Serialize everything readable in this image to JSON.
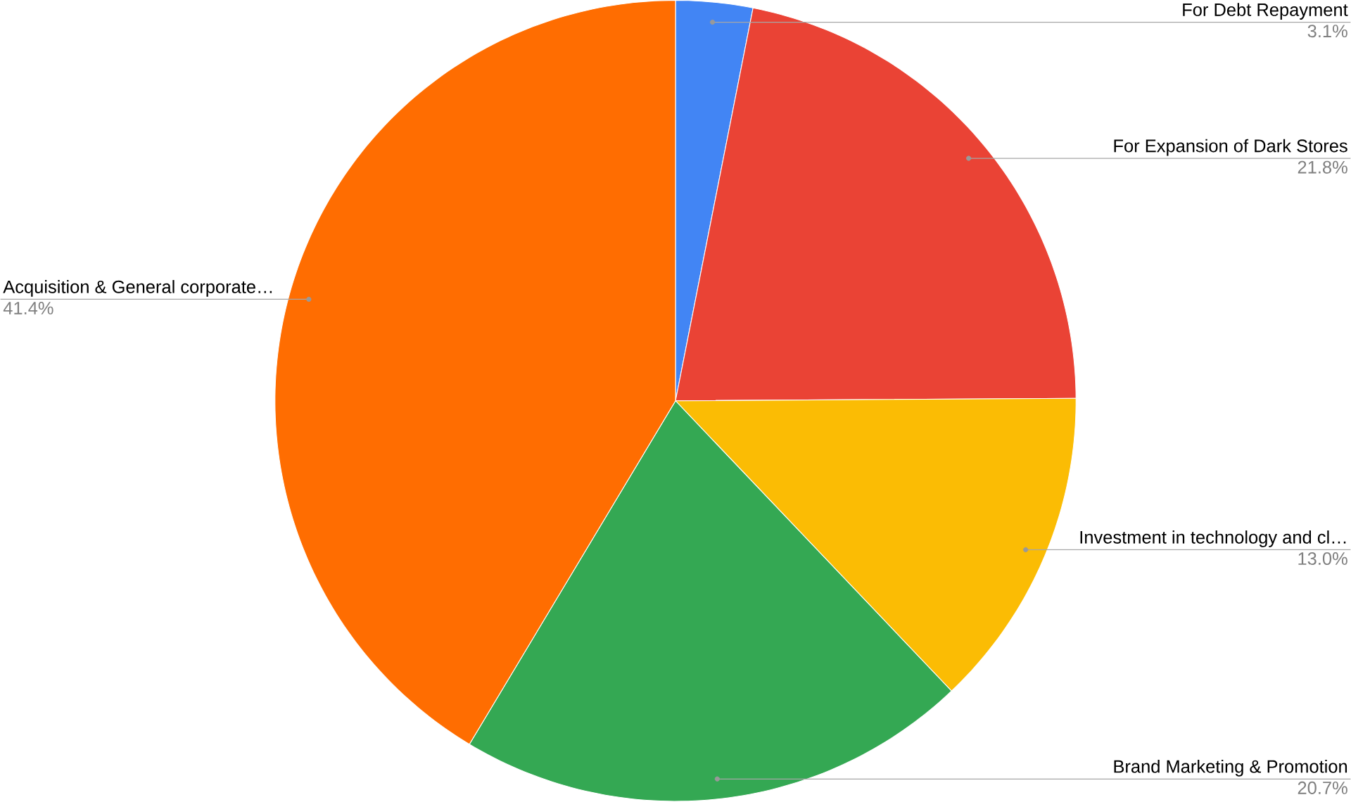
{
  "chart_data": {
    "type": "pie",
    "categories": [
      "For Debt Repayment",
      "For Expansion of Dark Stores",
      "Investment in technology and cl…",
      "Brand Marketing & Promotion",
      "Acquisition & General corporate…"
    ],
    "values": [
      3.1,
      21.8,
      13.0,
      20.7,
      41.4
    ],
    "colors": [
      "#4285f4",
      "#ea4335",
      "#fbbc04",
      "#34a853",
      "#ff6d01"
    ],
    "value_labels": [
      "3.1%",
      "21.8%",
      "13.0%",
      "20.7%",
      "41.4%"
    ]
  }
}
